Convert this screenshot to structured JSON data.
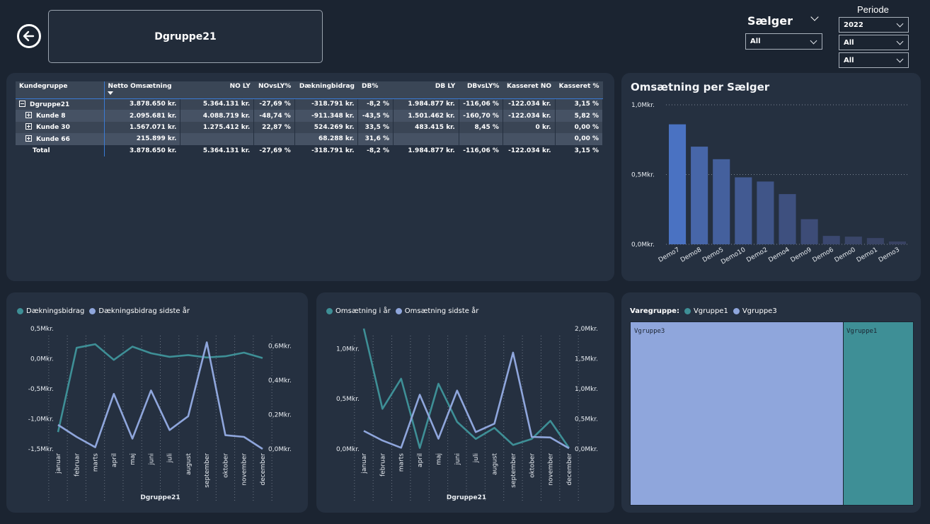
{
  "header": {
    "title": "Dgruppe21",
    "saelger_label": "Sælger",
    "saelger_value": "All",
    "periode_label": "Periode",
    "periode_values": [
      "2022",
      "All",
      "All"
    ]
  },
  "matrix": {
    "columns": [
      "Kundegruppe",
      "Netto Omsætning",
      "NO LY",
      "NOvsLY%",
      "Dækningbidrag",
      "DB%",
      "DB LY",
      "DBvsLY%",
      "Kasseret NO",
      "Kasseret %"
    ],
    "rows": [
      {
        "name": "Dgruppe21",
        "cells": [
          "3.878.650 kr.",
          "5.364.131 kr.",
          "-27,69 %",
          "-318.791 kr.",
          "-8,2 %",
          "1.984.877 kr.",
          "-116,06 %",
          "-122.034 kr.",
          "3,15 %"
        ]
      },
      {
        "name": "Kunde 8",
        "cells": [
          "2.095.681 kr.",
          "4.088.719 kr.",
          "-48,74 %",
          "-911.348 kr.",
          "-43,5 %",
          "1.501.462 kr.",
          "-160,70 %",
          "-122.034 kr.",
          "5,82 %"
        ]
      },
      {
        "name": "Kunde 30",
        "cells": [
          "1.567.071 kr.",
          "1.275.412 kr.",
          "22,87 %",
          "524.269 kr.",
          "33,5 %",
          "483.415 kr.",
          "8,45 %",
          "0 kr.",
          "0,00 %"
        ]
      },
      {
        "name": "Kunde 66",
        "cells": [
          "215.899 kr.",
          "",
          "",
          "68.288 kr.",
          "31,6 %",
          "",
          "",
          "",
          "0,00 %"
        ]
      },
      {
        "name": "Total",
        "cells": [
          "3.878.650 kr.",
          "5.364.131 kr.",
          "-27,69 %",
          "-318.791 kr.",
          "-8,2 %",
          "1.984.877 kr.",
          "-116,06 %",
          "-122.034 kr.",
          "3,15 %"
        ]
      }
    ]
  },
  "colors": {
    "bar": "#4a6fb5",
    "teal": "#3e8f96",
    "lavender": "#8fa6dc",
    "background": "#1b2431",
    "card": "#253040"
  },
  "chart_data": [
    {
      "type": "bar",
      "title": "Omsætning per Sælger",
      "categories": [
        "Demo7",
        "Demo8",
        "Demo5",
        "Demo10",
        "Demo2",
        "Demo4",
        "Demo9",
        "Demo6",
        "Demo0",
        "Demo1",
        "Demo3"
      ],
      "values": [
        0.86,
        0.7,
        0.61,
        0.48,
        0.45,
        0.36,
        0.18,
        0.06,
        0.055,
        0.045,
        0.02
      ],
      "unit": "Mkr.",
      "yticks": [
        "0,0Mkr.",
        "0,5Mkr.",
        "1,0Mkr."
      ],
      "ylim": [
        0,
        1.0
      ]
    },
    {
      "type": "line",
      "xlabel": "Dgruppe21",
      "categories": [
        "januar",
        "februar",
        "marts",
        "april",
        "maj",
        "juni",
        "juli",
        "august",
        "september",
        "oktober",
        "november",
        "december"
      ],
      "series": [
        {
          "name": "Dækningsbidrag",
          "axis": "left",
          "values": [
            -1.22,
            0.18,
            0.24,
            -0.02,
            0.2,
            0.09,
            0.03,
            0.06,
            0.02,
            0.04,
            0.1,
            0.01
          ]
        },
        {
          "name": "Dækningsbidrag sidste år",
          "axis": "right",
          "values": [
            0.14,
            0.07,
            0.01,
            0.32,
            0.06,
            0.34,
            0.11,
            0.19,
            0.62,
            0.08,
            0.07,
            0.0
          ]
        }
      ],
      "yticks_left": [
        "0,5Mkr.",
        "0,0Mkr.",
        "-0,5Mkr.",
        "-1,0Mkr.",
        "-1,5Mkr."
      ],
      "ylim_left": [
        -1.5,
        0.5
      ],
      "yticks_right": [
        "0,6Mkr.",
        "0,4Mkr.",
        "0,2Mkr.",
        "0,0Mkr."
      ],
      "ylim_right": [
        0,
        0.7
      ]
    },
    {
      "type": "line",
      "xlabel": "Dgruppe21",
      "categories": [
        "januar",
        "februar",
        "marts",
        "april",
        "maj",
        "juni",
        "juli",
        "august",
        "september",
        "oktober",
        "november",
        "december"
      ],
      "series": [
        {
          "name": "Omsætning i år",
          "axis": "left",
          "values": [
            1.2,
            0.4,
            0.7,
            0.01,
            0.65,
            0.27,
            0.1,
            0.21,
            0.04,
            0.1,
            0.28,
            0.01
          ]
        },
        {
          "name": "Omsætning sidste år",
          "axis": "right",
          "values": [
            0.3,
            0.14,
            0.02,
            0.9,
            0.17,
            0.97,
            0.28,
            0.42,
            1.6,
            0.2,
            0.19,
            0.01
          ]
        }
      ],
      "yticks_left": [
        "1,0Mkr.",
        "0,5Mkr.",
        "0,0Mkr."
      ],
      "ylim_left": [
        0,
        1.2
      ],
      "yticks_right": [
        "2,0Mkr.",
        "1,5Mkr.",
        "1,0Mkr.",
        "0,5Mkr.",
        "0,0Mkr."
      ],
      "ylim_right": [
        0,
        2.0
      ]
    }
  ],
  "treemap": {
    "legend_title": "Varegruppe:",
    "items": [
      {
        "name": "Vgruppe1",
        "color": "#3e8f96"
      },
      {
        "name": "Vgruppe3",
        "color": "#8fa6dc"
      }
    ],
    "tiles": [
      {
        "label": "Vgruppe3",
        "share": 0.755
      },
      {
        "label": "Vgruppe1",
        "share": 0.245
      }
    ]
  }
}
